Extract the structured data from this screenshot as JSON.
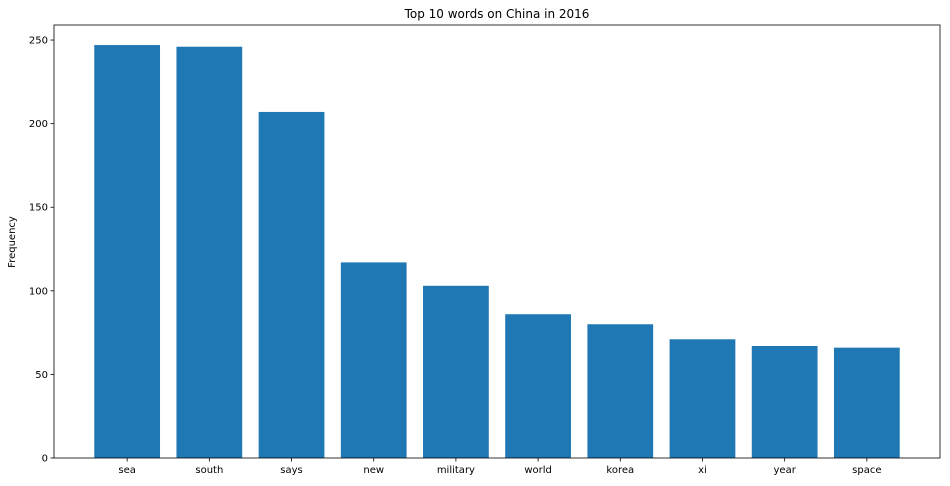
{
  "chart_data": {
    "type": "bar",
    "title": "Top 10 words on China in 2016",
    "xlabel": "",
    "ylabel": "Frequency",
    "categories": [
      "sea",
      "south",
      "says",
      "new",
      "military",
      "world",
      "korea",
      "xi",
      "year",
      "space"
    ],
    "values": [
      247,
      246,
      207,
      117,
      103,
      86,
      80,
      71,
      67,
      66
    ],
    "ylim": [
      0,
      259
    ],
    "yticks": [
      0,
      50,
      100,
      150,
      200,
      250
    ],
    "grid": false,
    "legend": "none",
    "bar_color": "#1f77b4"
  }
}
